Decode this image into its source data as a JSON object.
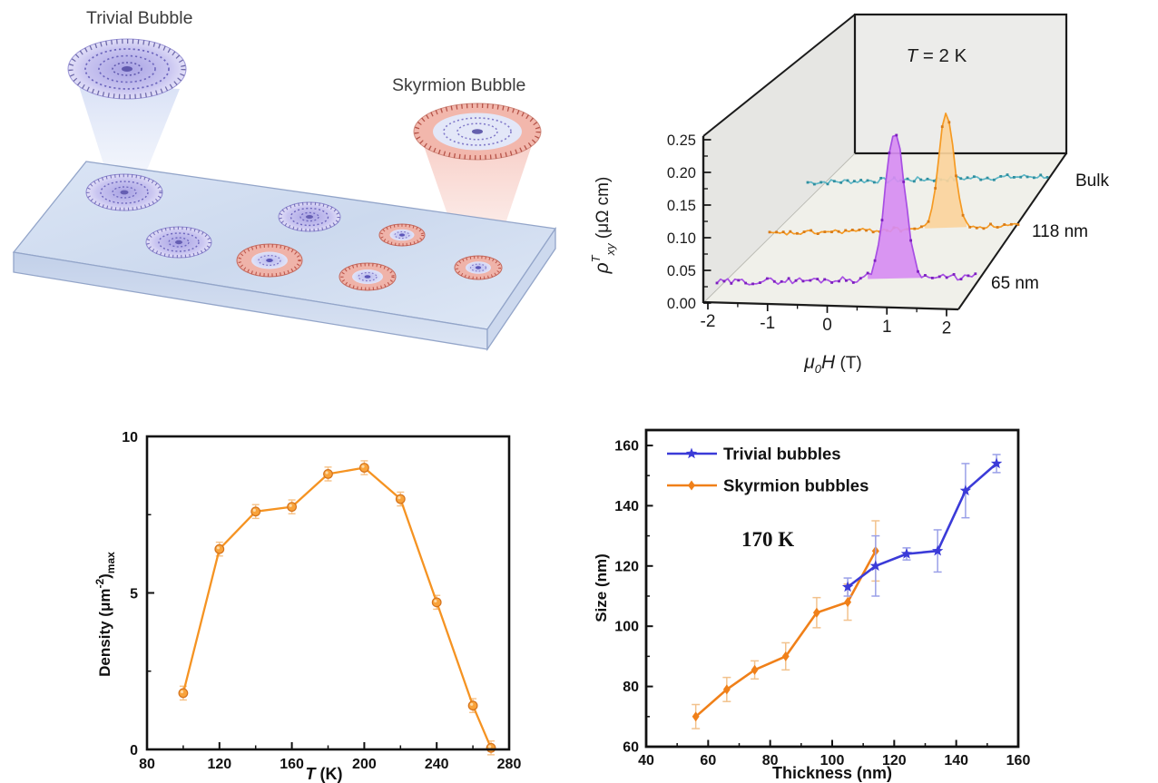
{
  "panel_a": {
    "trivial_label": "Trivial Bubble",
    "skyrmion_label": "Skyrmion Bubble"
  },
  "panel_b": {
    "annotation": {
      "T": "T",
      "rest": " = 2 K"
    },
    "ylabel": {
      "rho": "ρ",
      "sup": "T",
      "sub": "xy",
      "units": " (μΩ cm)"
    },
    "xlabel": {
      "mu": "μ",
      "sub": "0",
      "H": "H",
      "units": " (T)"
    }
  },
  "panel_c": {
    "ylabel": {
      "main": "Density (μm",
      "sup": "-2",
      "close": ")",
      "sub": "max"
    },
    "xlabel": {
      "T": "T",
      "units": " (K)"
    }
  },
  "panel_d": {
    "xlabel": "Thickness (nm)",
    "ylabel": "Size (nm)"
  },
  "chart_data": [
    {
      "id": "topological_hall_waterfall",
      "type": "line",
      "annotation": "T = 2 K",
      "xlabel": "μ0H (T)",
      "ylabel": "ρT_xy (μΩ cm)",
      "x_range": [
        -2.2,
        2.35
      ],
      "y_ticks": [
        0,
        0.05,
        0.1,
        0.15,
        0.2,
        0.25
      ],
      "x_ticks": [
        -2,
        -1,
        0,
        1,
        2
      ],
      "legend_position": "right-of-traces",
      "series": [
        {
          "name": "Bulk",
          "line_color": "#5fb7c6",
          "marker_color": "#2f8fa0",
          "fill_color": null,
          "peak": null,
          "noise_amplitude": 0.004
        },
        {
          "name": "118 nm",
          "line_color": "#f59a23",
          "marker_color": "#d97b16",
          "fill_color": "#fbd49c",
          "peak": {
            "center_T": 1.0,
            "height_uohm_cm": 0.175,
            "sigma_T": 0.14
          },
          "noise_amplitude": 0.0035
        },
        {
          "name": "65 nm",
          "line_color": "#a74fe3",
          "marker_color": "#7d1fbf",
          "fill_color": "#d78df2",
          "peak": {
            "center_T": 0.9,
            "height_uohm_cm": 0.225,
            "sigma_T": 0.17
          },
          "noise_amplitude": 0.005
        }
      ]
    },
    {
      "id": "bubble_density_vs_temperature",
      "type": "line",
      "xlabel": "T (K)",
      "ylabel": "Density (μm-2)max",
      "x": [
        100,
        120,
        140,
        160,
        180,
        200,
        220,
        240,
        260,
        270
      ],
      "y": [
        1.8,
        6.4,
        7.6,
        7.75,
        8.8,
        9.0,
        8.0,
        4.7,
        1.4,
        0.05
      ],
      "yerr": 0.22,
      "x_ticks": [
        80,
        120,
        160,
        200,
        240,
        280
      ],
      "y_ticks": [
        0,
        5,
        10
      ],
      "xlim": [
        80,
        280
      ],
      "ylim": [
        -1,
        10
      ],
      "line_color": "#f59322",
      "marker_color": "#f9a33b",
      "error_color": "#f6c187"
    },
    {
      "id": "bubble_size_vs_thickness",
      "type": "line",
      "annotation": "170 K",
      "xlabel": "Thickness (nm)",
      "ylabel": "Size (nm)",
      "x_ticks": [
        40,
        60,
        80,
        100,
        120,
        140,
        160
      ],
      "y_ticks": [
        60,
        80,
        100,
        120,
        140,
        160
      ],
      "xlim": [
        40,
        160
      ],
      "ylim": [
        60,
        165
      ],
      "legend_position": "top-left",
      "series": [
        {
          "name": "Trivial bubbles",
          "color": "#3b3bd8",
          "marker": "star",
          "err_color": "#9aa0e8",
          "x": [
            105,
            114,
            124,
            134,
            143,
            153
          ],
          "y": [
            113,
            120,
            124,
            125,
            145,
            154
          ],
          "yerr": [
            3,
            10,
            2,
            7,
            9,
            3
          ]
        },
        {
          "name": "Skyrmion bubbles",
          "color": "#f08019",
          "marker": "diamond",
          "err_color": "#f2c28d",
          "x": [
            56,
            66,
            75,
            85,
            95,
            105,
            114
          ],
          "y": [
            70,
            79,
            85.5,
            90,
            104.5,
            108,
            125
          ],
          "yerr": [
            4,
            4,
            3,
            4.5,
            5,
            6,
            10
          ]
        }
      ]
    }
  ]
}
